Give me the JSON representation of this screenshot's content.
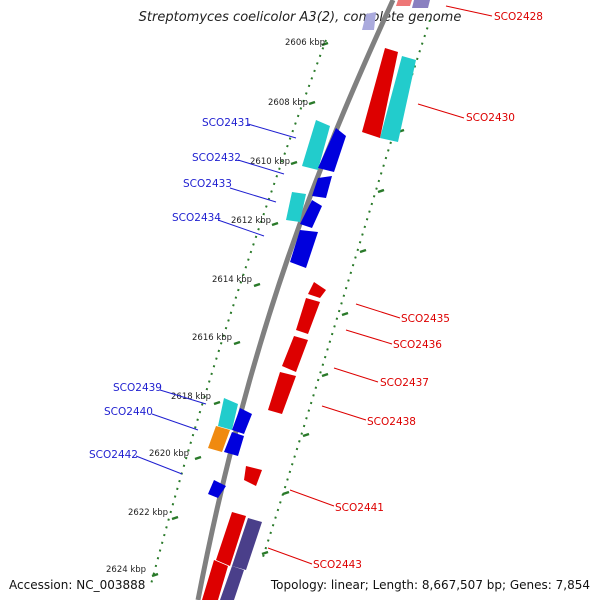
{
  "title": "Streptomyces coelicolor A3(2), complete genome",
  "footer": {
    "accession": "Accession: NC_003888",
    "stats": "Topology: linear; Length: 8,667,507 bp; Genes: 7,854"
  },
  "colors": {
    "backbone": "#808080",
    "forward_gene": "#dd0000",
    "reverse_gene": "#0000dd",
    "cds_cyan": "#22cccc",
    "cds_orange": "#f08a10",
    "cds_purple": "#4a3f8a",
    "ticks": "#2a7a2a"
  },
  "kbp_labels": [
    "2606 kbp",
    "2608 kbp",
    "2610 kbp",
    "2612 kbp",
    "2614 kbp",
    "2616 kbp",
    "2618 kbp",
    "2620 kbp",
    "2622 kbp",
    "2624 kbp"
  ],
  "genes_left": [
    "SCO2431",
    "SCO2432",
    "SCO2433",
    "SCO2434",
    "SCO2439",
    "SCO2440",
    "SCO2442"
  ],
  "genes_right": [
    "SCO2428",
    "SCO2430",
    "SCO2435",
    "SCO2436",
    "SCO2437",
    "SCO2438",
    "SCO2441",
    "SCO2443"
  ]
}
